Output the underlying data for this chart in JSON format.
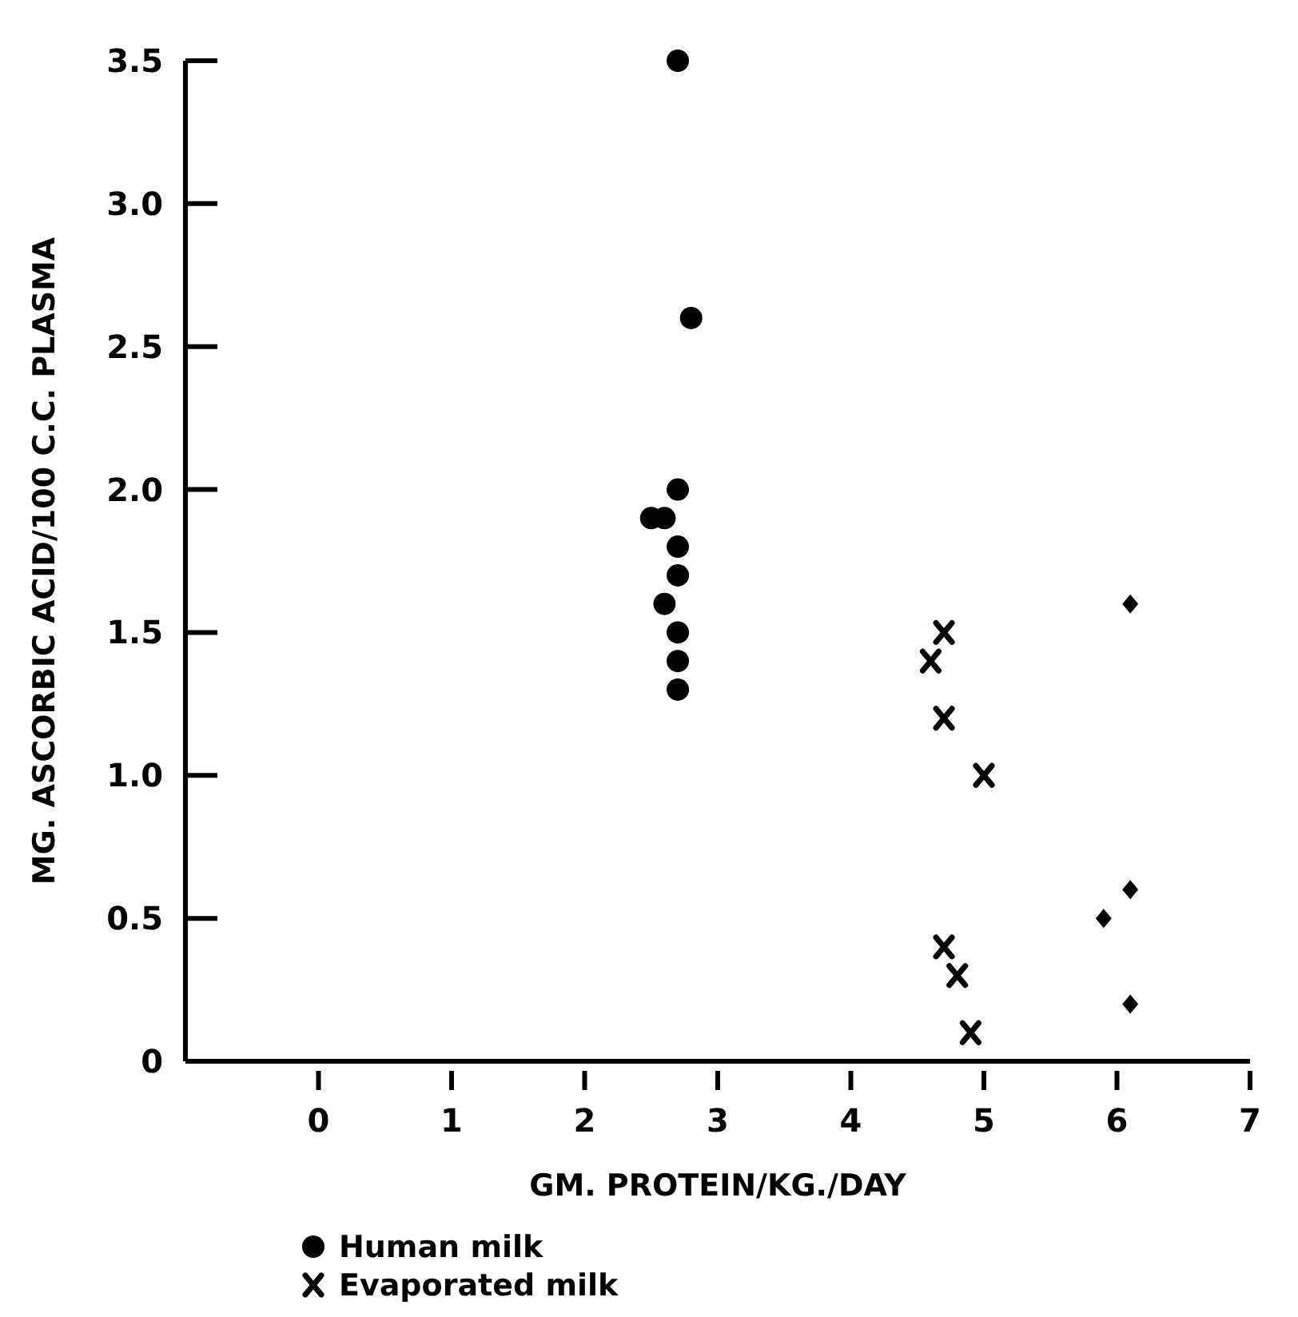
{
  "chart_data": {
    "type": "scatter",
    "xlabel": "GM. PROTEIN/KG./DAY",
    "ylabel": "MG. ASCORBIC ACID/100 C.C. PLASMA",
    "xlim": [
      -1,
      7
    ],
    "xticks": [
      0,
      1,
      2,
      3,
      4,
      5,
      6,
      7
    ],
    "ylim": [
      0,
      3.5
    ],
    "yticks": [
      {
        "value": 0,
        "label": "0"
      },
      0.5,
      {
        "value": 1,
        "label": "1.0"
      },
      1.5,
      {
        "value": 2,
        "label": "2.0"
      },
      2.5,
      {
        "value": 3,
        "label": "3.0"
      },
      3.5
    ],
    "grid": false,
    "legend": "bottom",
    "series": [
      {
        "name": "Human milk",
        "color": "#000000",
        "marker": "circle",
        "x": [
          2.7,
          2.8,
          2.7,
          2.5,
          2.6,
          2.7,
          2.7,
          2.6,
          2.7,
          2.7,
          2.7
        ],
        "values": [
          3.5,
          2.6,
          2.0,
          1.9,
          1.9,
          1.8,
          1.7,
          1.6,
          1.5,
          1.4,
          1.3
        ]
      },
      {
        "name": "Evaporated milk",
        "color": "#000000",
        "marker": "cross",
        "x": [
          4.7,
          4.6,
          4.7,
          5.0,
          4.7,
          4.8,
          4.9
        ],
        "values": [
          1.5,
          1.4,
          1.2,
          1.0,
          0.4,
          0.3,
          0.1
        ]
      },
      {
        "color": "#000000",
        "marker": "diamond",
        "x": [
          6.1,
          6.1,
          5.9,
          6.1
        ],
        "values": [
          1.6,
          0.6,
          0.5,
          0.2
        ]
      }
    ]
  }
}
